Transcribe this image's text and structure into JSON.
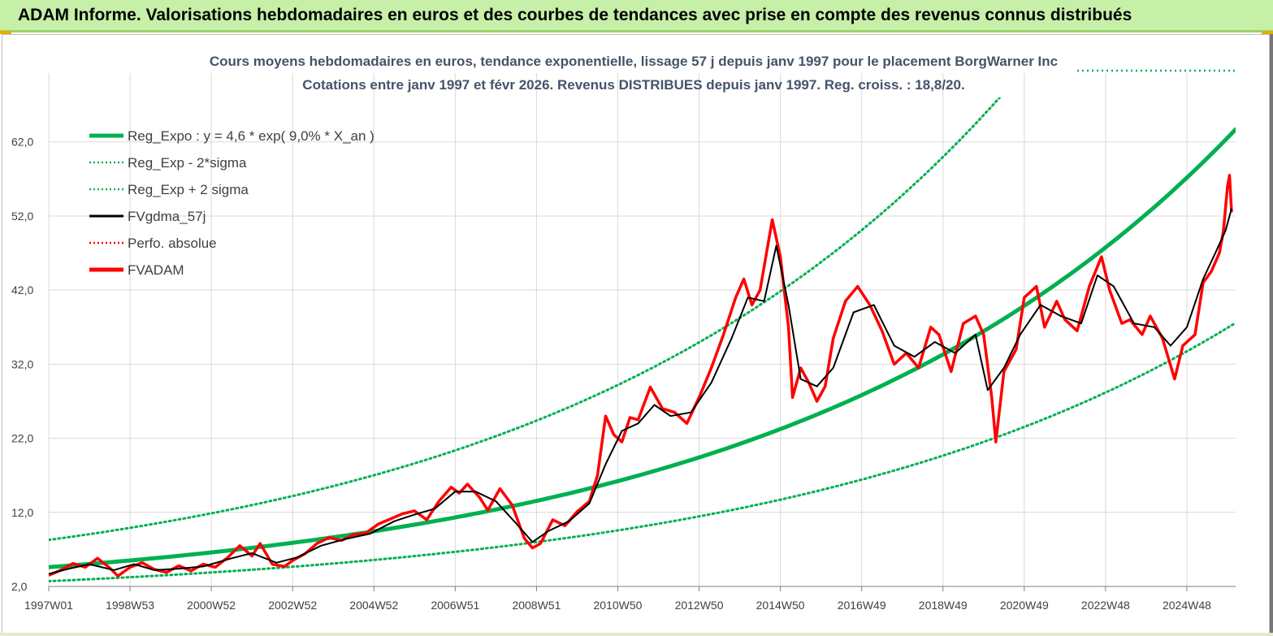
{
  "header": {
    "title": "ADAM Informe. Valorisations hebdomadaires en euros et des courbes de tendances avec prise en compte des revenus connus distribués"
  },
  "colors": {
    "banner_bg": "#c6efa8",
    "reg_expo": "#00b050",
    "sigma": "#00b050",
    "fvgdma": "#000000",
    "perfo": "#ff0000",
    "fvadam": "#ff0000",
    "grid": "#d9d9d9",
    "title_text": "#44546a"
  },
  "chart_data": {
    "type": "line",
    "title": "Cours moyens hebdomadaires en euros, tendance exponentielle, lissage 57 j depuis janv 1997 pour le placement BorgWarner Inc",
    "subtitle": "Cotations entre janv 1997 et févr 2026. Revenus DISTRIBUES depuis janv 1997. Reg. croiss. : 18,8/20.",
    "xlabel": "",
    "ylabel": "",
    "xlim": [
      1997.0,
      2026.2
    ],
    "ylim": [
      2.0,
      68.0
    ],
    "y_ticks": [
      2.0,
      12.0,
      22.0,
      32.0,
      42.0,
      52.0,
      62.0
    ],
    "y_tick_labels": [
      "2,0",
      "12,0",
      "22,0",
      "32,0",
      "42,0",
      "52,0",
      "62,0"
    ],
    "x_ticks": [
      1997.0,
      1999.0,
      2001.0,
      2003.0,
      2005.0,
      2007.0,
      2009.0,
      2011.0,
      2013.0,
      2015.0,
      2017.0,
      2019.0,
      2021.0,
      2023.0,
      2025.0
    ],
    "x_tick_labels": [
      "1997W01",
      "1998W53",
      "2000W52",
      "2002W52",
      "2004W52",
      "2006W51",
      "2008W51",
      "2010W50",
      "2012W50",
      "2014W50",
      "2016W49",
      "2018W49",
      "2020W49",
      "2022W48",
      "2024W48"
    ],
    "grid": true,
    "legend_position": "top-left",
    "regression": {
      "label": "Reg_Expo : y = 4,6 * exp( 9,0% *  X_an )",
      "a": 4.6,
      "rate": 0.09,
      "lower_factor": 0.59,
      "upper_factor": 1.8
    },
    "legend": [
      {
        "key": "reg",
        "label": "Reg_Expo : y = 4,6 * exp( 9,0% *  X_an )",
        "color": "#00b050",
        "style": "solid-thick"
      },
      {
        "key": "lower",
        "label": "Reg_Exp - 2*sigma",
        "color": "#00b050",
        "style": "dotted"
      },
      {
        "key": "upper",
        "label": "Reg_Exp + 2 sigma",
        "color": "#00b050",
        "style": "dotted"
      },
      {
        "key": "fvgdma",
        "label": "FVgdma_57j",
        "color": "#000000",
        "style": "solid"
      },
      {
        "key": "perfo",
        "label": "Perfo. absolue",
        "color": "#ff0000",
        "style": "dotted"
      },
      {
        "key": "fvadam",
        "label": "FVADAM",
        "color": "#ff0000",
        "style": "solid-thick"
      }
    ],
    "series": [
      {
        "name": "FVADAM",
        "x": [
          1997.0,
          1997.3,
          1997.6,
          1997.9,
          1998.2,
          1998.5,
          1998.7,
          1999.0,
          1999.3,
          1999.6,
          1999.9,
          2000.2,
          2000.5,
          2000.8,
          2001.1,
          2001.4,
          2001.7,
          2002.0,
          2002.2,
          2002.5,
          2002.8,
          2003.0,
          2003.3,
          2003.6,
          2003.9,
          2004.2,
          2004.5,
          2004.8,
          2005.1,
          2005.4,
          2005.7,
          2006.0,
          2006.3,
          2006.6,
          2006.9,
          2007.1,
          2007.3,
          2007.6,
          2007.8,
          2008.1,
          2008.4,
          2008.7,
          2008.9,
          2009.1,
          2009.4,
          2009.7,
          2010.0,
          2010.3,
          2010.5,
          2010.7,
          2010.9,
          2011.1,
          2011.3,
          2011.5,
          2011.8,
          2012.1,
          2012.4,
          2012.7,
          2013.0,
          2013.3,
          2013.6,
          2013.9,
          2014.1,
          2014.3,
          2014.5,
          2014.8,
          2015.0,
          2015.2,
          2015.3,
          2015.5,
          2015.7,
          2015.9,
          2016.1,
          2016.3,
          2016.6,
          2016.9,
          2017.2,
          2017.5,
          2017.8,
          2018.1,
          2018.4,
          2018.7,
          2018.9,
          2019.2,
          2019.5,
          2019.8,
          2020.0,
          2020.2,
          2020.3,
          2020.5,
          2020.8,
          2021.0,
          2021.3,
          2021.5,
          2021.8,
          2022.0,
          2022.3,
          2022.6,
          2022.9,
          2023.1,
          2023.4,
          2023.6,
          2023.9,
          2024.1,
          2024.4,
          2024.7,
          2024.9,
          2025.2,
          2025.4,
          2025.6,
          2025.8,
          2025.9,
          2026.0,
          2026.05,
          2026.1
        ],
        "values": [
          3.5,
          4.2,
          5.1,
          4.6,
          5.8,
          4.5,
          3.4,
          4.6,
          5.2,
          4.3,
          3.9,
          4.8,
          4.1,
          5.0,
          4.6,
          5.9,
          7.5,
          6.1,
          7.8,
          5.0,
          4.7,
          5.5,
          6.4,
          7.8,
          8.6,
          8.2,
          9.0,
          9.2,
          10.4,
          11.1,
          11.8,
          12.2,
          11.0,
          13.5,
          15.4,
          14.6,
          15.8,
          14.0,
          12.3,
          15.2,
          13.0,
          8.5,
          7.2,
          7.8,
          11.0,
          10.2,
          12.1,
          13.5,
          17.0,
          25.0,
          22.5,
          21.5,
          24.8,
          24.5,
          28.9,
          26.0,
          25.5,
          24.0,
          27.5,
          31.5,
          36.0,
          41.0,
          43.5,
          40.0,
          42.0,
          51.5,
          46.5,
          37.0,
          27.5,
          31.5,
          29.5,
          27.0,
          29.0,
          35.5,
          40.5,
          42.5,
          40.0,
          36.5,
          32.0,
          33.5,
          31.5,
          37.0,
          36.0,
          31.0,
          37.5,
          38.5,
          36.0,
          27.5,
          21.5,
          31.0,
          34.0,
          41.0,
          42.5,
          37.0,
          40.5,
          38.0,
          36.5,
          42.5,
          46.5,
          42.0,
          37.5,
          38.0,
          36.0,
          38.5,
          35.5,
          30.0,
          34.5,
          36.0,
          43.0,
          44.5,
          47.0,
          50.0,
          56.0,
          57.5,
          52.5
        ]
      },
      {
        "name": "FVgdma_57j",
        "x": [
          1997.0,
          1997.5,
          1998.0,
          1998.6,
          1999.1,
          1999.6,
          2000.2,
          2000.8,
          2001.5,
          2002.0,
          2002.6,
          2003.1,
          2003.7,
          2004.3,
          2004.9,
          2005.5,
          2006.0,
          2006.5,
          2007.0,
          2007.5,
          2008.0,
          2008.5,
          2008.9,
          2009.3,
          2009.8,
          2010.3,
          2010.7,
          2011.1,
          2011.5,
          2011.9,
          2012.3,
          2012.8,
          2013.3,
          2013.8,
          2014.2,
          2014.6,
          2014.9,
          2015.2,
          2015.5,
          2015.9,
          2016.3,
          2016.8,
          2017.3,
          2017.8,
          2018.3,
          2018.8,
          2019.3,
          2019.8,
          2020.1,
          2020.5,
          2020.9,
          2021.4,
          2021.9,
          2022.4,
          2022.8,
          2023.2,
          2023.7,
          2024.2,
          2024.6,
          2025.0,
          2025.4,
          2025.7,
          2025.95,
          2026.1
        ],
        "values": [
          3.7,
          4.4,
          5.0,
          4.2,
          5.0,
          4.2,
          4.4,
          4.7,
          5.8,
          6.5,
          5.2,
          5.9,
          7.5,
          8.4,
          9.1,
          10.8,
          11.7,
          12.5,
          14.8,
          14.8,
          13.5,
          10.5,
          8.0,
          9.5,
          10.8,
          13.2,
          18.5,
          23.0,
          24.0,
          26.5,
          25.0,
          25.5,
          29.5,
          35.5,
          41.0,
          40.5,
          48.0,
          40.0,
          30.0,
          29.0,
          31.5,
          39.0,
          40.0,
          34.5,
          33.0,
          35.0,
          33.5,
          36.0,
          28.5,
          31.5,
          36.0,
          40.0,
          38.5,
          37.5,
          44.0,
          42.5,
          37.5,
          37.0,
          34.5,
          37.0,
          43.5,
          47.0,
          50.0,
          53.0
        ]
      }
    ]
  }
}
